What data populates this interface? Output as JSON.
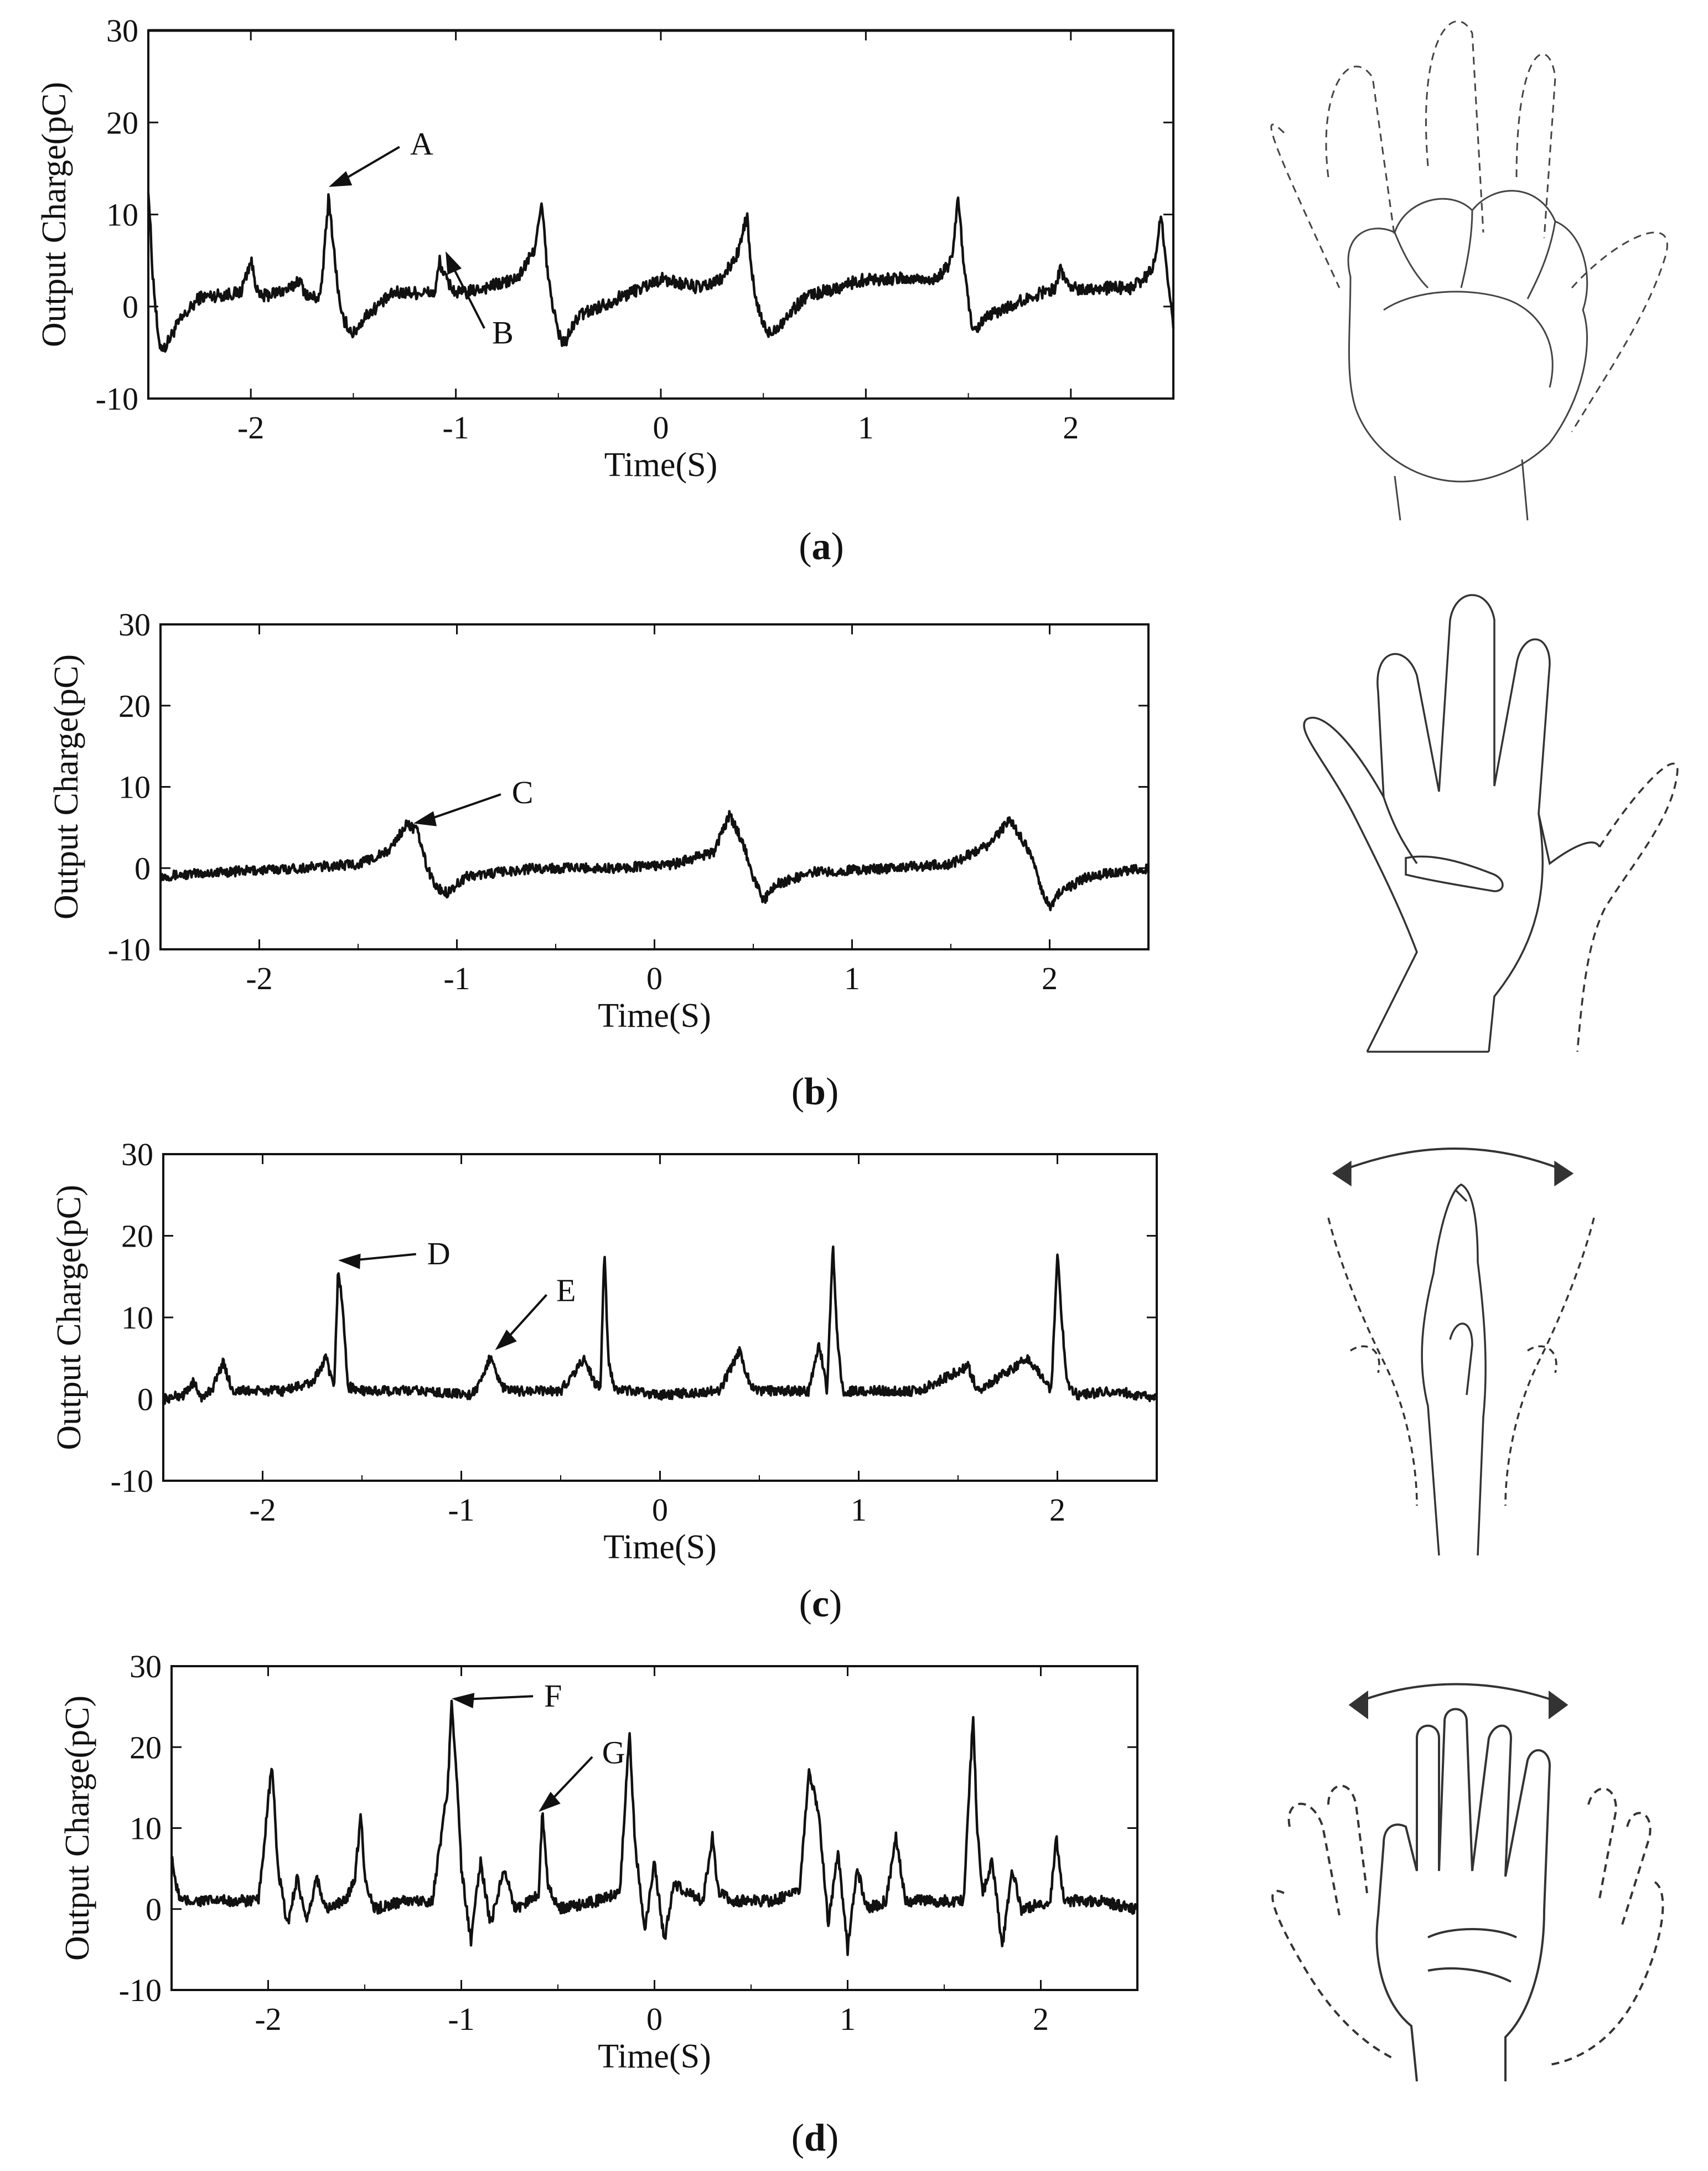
{
  "chart_data": [
    {
      "type": "line",
      "panel": "a",
      "caption_letter": "a",
      "xlabel": "Time(S)",
      "ylabel": "Output Charge(pC)",
      "xlim": [
        -2.5,
        2.5
      ],
      "ylim": [
        -10,
        30
      ],
      "xticks": [
        -2,
        -1,
        0,
        1,
        2
      ],
      "yticks": [
        -10,
        0,
        10,
        20,
        30
      ],
      "grid": false,
      "reference_line_y": 30,
      "baseline": 1.5,
      "noise": 0.7,
      "series": [
        {
          "x": [
            -2.5,
            -2.48,
            -2.45,
            -2.42,
            -2.36,
            -2.25,
            -2.05,
            -2.0,
            -1.96,
            -1.8,
            -1.77,
            -1.72,
            -1.66,
            -1.62,
            -1.59,
            -1.56,
            -1.5,
            -1.44,
            -1.3,
            -1.1,
            -1.08,
            -1.05,
            -1.0,
            -0.95,
            -0.7,
            -0.62,
            -0.58,
            -0.55,
            -0.5,
            -0.47,
            -0.4,
            -0.2,
            0.0,
            0.2,
            0.3,
            0.38,
            0.42,
            0.44,
            0.47,
            0.52,
            0.58,
            0.7,
            0.85,
            1.0,
            1.1,
            1.35,
            1.42,
            1.45,
            1.48,
            1.52,
            1.6,
            1.8,
            1.92,
            1.95,
            2.0,
            2.3,
            2.4,
            2.44,
            2.47,
            2.5
          ],
          "y": [
            13,
            4,
            -4,
            -4.5,
            -2,
            1,
            1.5,
            5,
            1,
            2,
            3,
            1,
            1,
            12,
            5,
            -1,
            -3,
            -1,
            1.5,
            1.5,
            5,
            3,
            1.5,
            1.5,
            3,
            6,
            11,
            3,
            -3,
            -4,
            -1,
            1,
            3,
            2,
            3,
            6,
            10,
            4,
            0,
            -3,
            -2,
            1,
            2,
            3,
            3,
            3,
            5,
            12,
            4,
            -3,
            -1,
            1,
            2,
            4,
            2,
            2,
            4,
            10,
            3,
            -2
          ]
        }
      ],
      "annotations": [
        {
          "label": "A",
          "x": -1.62,
          "y": 13,
          "text_x": -1.25,
          "text_y": 16.5
        },
        {
          "label": "B",
          "x": -1.05,
          "y": 6,
          "text_x": -0.85,
          "text_y": -4
        }
      ],
      "hand": "fist"
    },
    {
      "type": "line",
      "panel": "b",
      "caption_letter": "b",
      "xlabel": "Time(S)",
      "ylabel": "Output Charge(pC)",
      "xlim": [
        -2.5,
        2.5
      ],
      "ylim": [
        -10,
        30
      ],
      "xticks": [
        -2,
        -1,
        0,
        1,
        2
      ],
      "yticks": [
        -10,
        0,
        10,
        20,
        30
      ],
      "grid": false,
      "baseline": 0,
      "noise": 0.6,
      "series": [
        {
          "x": [
            -2.5,
            -2.2,
            -1.8,
            -1.5,
            -1.35,
            -1.25,
            -1.2,
            -1.15,
            -1.1,
            -1.05,
            -0.95,
            -0.6,
            -0.2,
            0.1,
            0.3,
            0.38,
            0.45,
            0.5,
            0.55,
            0.62,
            0.8,
            1.2,
            1.5,
            1.7,
            1.8,
            1.9,
            1.95,
            2.0,
            2.05,
            2.2,
            2.5
          ],
          "y": [
            -1,
            -0.5,
            0,
            0.5,
            2,
            5.5,
            4.5,
            0,
            -2.5,
            -3,
            -1,
            0,
            0,
            0.5,
            2,
            6.5,
            3,
            -1,
            -4,
            -2,
            -0.5,
            0,
            0.5,
            3,
            6,
            2,
            -2,
            -5,
            -3,
            -1,
            0
          ]
        }
      ],
      "annotations": [
        {
          "label": "C",
          "x": -1.22,
          "y": 5.5,
          "text_x": -0.75,
          "text_y": 8
        }
      ],
      "hand": "open-palm-thumb-folded"
    },
    {
      "type": "line",
      "panel": "c",
      "caption_letter": "c",
      "xlabel": "Time(S)",
      "ylabel": "Output Charge(pC)",
      "xlim": [
        -2.5,
        2.5
      ],
      "ylim": [
        -10,
        30
      ],
      "xticks": [
        -2,
        -1,
        0,
        1,
        2
      ],
      "yticks": [
        -10,
        0,
        10,
        20,
        30
      ],
      "grid": false,
      "baseline": 1,
      "noise": 0.6,
      "series": [
        {
          "x": [
            -2.5,
            -2.4,
            -2.35,
            -2.3,
            -2.25,
            -2.2,
            -2.15,
            -1.9,
            -1.75,
            -1.68,
            -1.64,
            -1.62,
            -1.6,
            -1.57,
            -1.5,
            -1.2,
            -0.95,
            -0.9,
            -0.85,
            -0.8,
            -0.75,
            -0.5,
            -0.38,
            -0.33,
            -0.3,
            -0.28,
            -0.26,
            -0.23,
            -0.15,
            0.0,
            0.3,
            0.4,
            0.45,
            0.5,
            0.6,
            0.75,
            0.8,
            0.84,
            0.87,
            0.89,
            0.92,
            0.98,
            1.3,
            1.55,
            1.6,
            1.85,
            1.92,
            1.97,
            2.0,
            2.02,
            2.05,
            2.1,
            2.3,
            2.5
          ],
          "y": [
            0,
            0.5,
            2,
            0,
            1.5,
            4.5,
            1,
            1,
            2,
            5,
            1,
            16,
            12,
            1.5,
            1,
            1,
            0.5,
            2,
            5.5,
            1.5,
            1,
            1,
            5,
            2,
            1.5,
            18,
            5,
            1,
            1,
            0.5,
            1,
            6,
            2,
            1,
            1,
            1,
            7,
            1,
            19,
            8,
            1,
            1,
            1,
            4,
            1,
            5,
            3,
            1,
            18,
            10,
            2,
            0.5,
            1,
            0
          ]
        }
      ],
      "annotations": [
        {
          "label": "D",
          "x": -1.62,
          "y": 17,
          "text_x": -1.2,
          "text_y": 16.5
        },
        {
          "label": "E",
          "x": -0.83,
          "y": 6,
          "text_x": -0.55,
          "text_y": 12
        }
      ],
      "hand": "hand-wave-side"
    },
    {
      "type": "line",
      "panel": "d",
      "caption_letter": "d",
      "xlabel": "Time(S)",
      "ylabel": "Output Charge(pC)",
      "xlim": [
        -2.5,
        2.5
      ],
      "ylim": [
        -10,
        30
      ],
      "xticks": [
        -2,
        -1,
        0,
        1,
        2
      ],
      "yticks": [
        -10,
        0,
        10,
        20,
        30
      ],
      "grid": false,
      "baseline": 0.5,
      "noise": 0.7,
      "series": [
        {
          "x": [
            -2.5,
            -2.48,
            -2.45,
            -2.4,
            -2.2,
            -2.05,
            -1.98,
            -1.95,
            -1.9,
            -1.85,
            -1.8,
            -1.75,
            -1.7,
            -1.6,
            -1.55,
            -1.52,
            -1.5,
            -1.45,
            -1.3,
            -1.15,
            -1.07,
            -1.05,
            -1.02,
            -1.0,
            -0.95,
            -0.9,
            -0.85,
            -0.78,
            -0.72,
            -0.65,
            -0.6,
            -0.58,
            -0.55,
            -0.5,
            -0.3,
            -0.18,
            -0.13,
            -0.1,
            -0.05,
            0.0,
            0.05,
            0.1,
            0.25,
            0.3,
            0.33,
            0.4,
            0.6,
            0.75,
            0.8,
            0.85,
            0.9,
            0.95,
            1.0,
            1.05,
            1.1,
            1.2,
            1.25,
            1.3,
            1.5,
            1.6,
            1.65,
            1.67,
            1.7,
            1.75,
            1.8,
            1.85,
            1.9,
            2.05,
            2.08,
            2.12,
            2.3,
            2.5
          ],
          "y": [
            7,
            3,
            1,
            1,
            1,
            1,
            18,
            5,
            -2,
            4,
            -2,
            4,
            0,
            1,
            4,
            12,
            4,
            0,
            1,
            1,
            15,
            26,
            15,
            5,
            -4,
            6,
            -2,
            5,
            0,
            1,
            2,
            12,
            3,
            0,
            1,
            2,
            22,
            8,
            -3,
            6,
            -4,
            3,
            1,
            9,
            2,
            1,
            1,
            2,
            17,
            12,
            -2,
            7,
            -5,
            5,
            0,
            1,
            9,
            1,
            1,
            1,
            24,
            10,
            2,
            6,
            -5,
            5,
            0,
            1,
            9,
            1,
            1,
            0
          ]
        }
      ],
      "annotations": [
        {
          "label": "F",
          "x": -1.05,
          "y": 26,
          "text_x": -0.6,
          "text_y": 25
        },
        {
          "label": "G",
          "x": -0.6,
          "y": 12,
          "text_x": -0.3,
          "text_y": 18
        }
      ],
      "hand": "palm-wave-front"
    }
  ],
  "icons": {
    "hand_a": "fist-hand-icon",
    "hand_b": "open-palm-hand-icon",
    "hand_c": "side-wave-hand-icon",
    "hand_d": "front-wave-hand-icon"
  }
}
